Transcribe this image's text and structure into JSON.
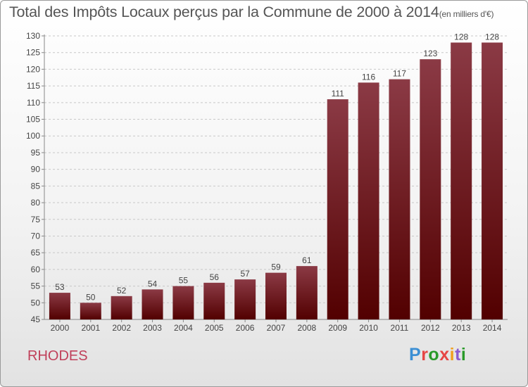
{
  "title": "Total des Impôts Locaux perçus par la Commune de 2000 à 2014",
  "unit_note": "(en milliers d'€)",
  "commune": "RHODES",
  "logo_text": "Proxiti",
  "colors": {
    "bar_top": "#8b3a45",
    "bar_bottom": "#520000",
    "grid": "#c8c8c8",
    "label": "#444444"
  },
  "chart_data": {
    "type": "bar",
    "title": "Total des Impôts Locaux perçus par la Commune de 2000 à 2014",
    "ylabel": "en milliers d'€",
    "xlabel": "",
    "categories": [
      "2000",
      "2001",
      "2002",
      "2003",
      "2004",
      "2005",
      "2006",
      "2007",
      "2008",
      "2009",
      "2010",
      "2011",
      "2012",
      "2013",
      "2014"
    ],
    "values": [
      53,
      50,
      52,
      54,
      55,
      56,
      57,
      59,
      61,
      111,
      116,
      117,
      123,
      128,
      128
    ],
    "ylim": [
      45,
      130
    ],
    "yticks": [
      45,
      50,
      55,
      60,
      65,
      70,
      75,
      80,
      85,
      90,
      95,
      100,
      105,
      110,
      115,
      120,
      125,
      130
    ],
    "grid": true
  }
}
